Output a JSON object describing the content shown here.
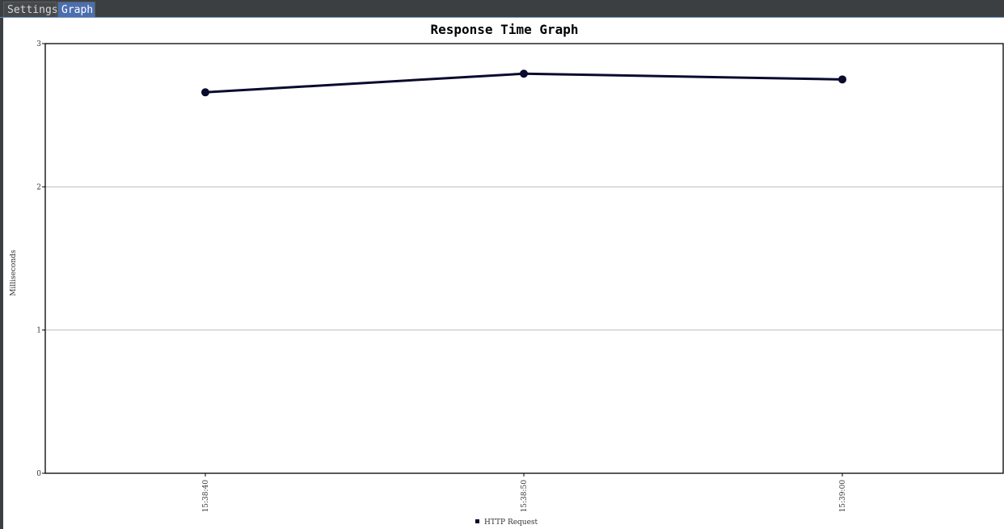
{
  "tabs": [
    {
      "label": "Settings",
      "active": false
    },
    {
      "label": "Graph",
      "active": true
    }
  ],
  "chart_data": {
    "type": "line",
    "title": "Response Time Graph",
    "xlabel": "",
    "ylabel": "Milliseconds",
    "ylim": [
      0,
      3
    ],
    "y_ticks": [
      "0",
      "1",
      "2",
      "3"
    ],
    "categories": [
      "15:38:40",
      "15:38:50",
      "15:39:00"
    ],
    "series": [
      {
        "name": "HTTP Request",
        "values": [
          2.66,
          2.79,
          2.75
        ],
        "color": "#0a0a2e"
      }
    ],
    "grid": true,
    "legend": "bottom-center"
  }
}
